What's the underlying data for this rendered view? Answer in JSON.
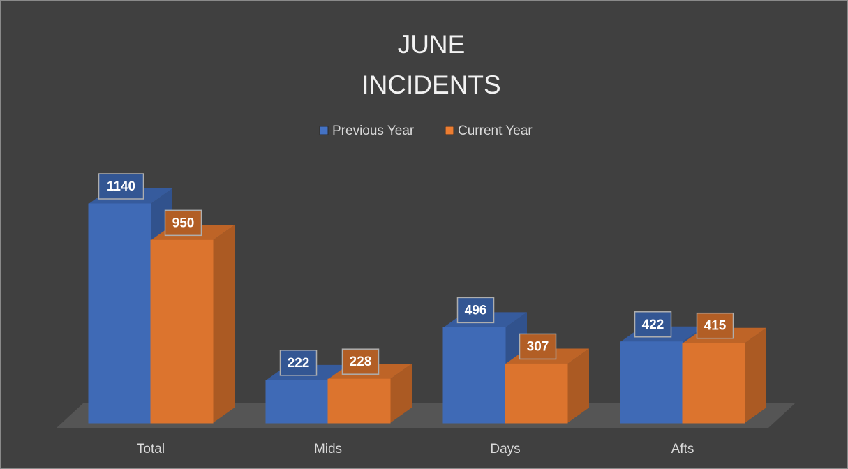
{
  "chart_data": {
    "type": "bar3d",
    "title": "JUNE INCIDENTS",
    "categories": [
      "Total",
      "Mids",
      "Days",
      "Afts"
    ],
    "series": [
      {
        "name": "Previous Year",
        "color": "#4472c4",
        "values": [
          1140,
          222,
          496,
          422
        ]
      },
      {
        "name": "Current Year",
        "color": "#ed7d31",
        "values": [
          950,
          228,
          307,
          415
        ]
      }
    ],
    "legend": "top"
  }
}
